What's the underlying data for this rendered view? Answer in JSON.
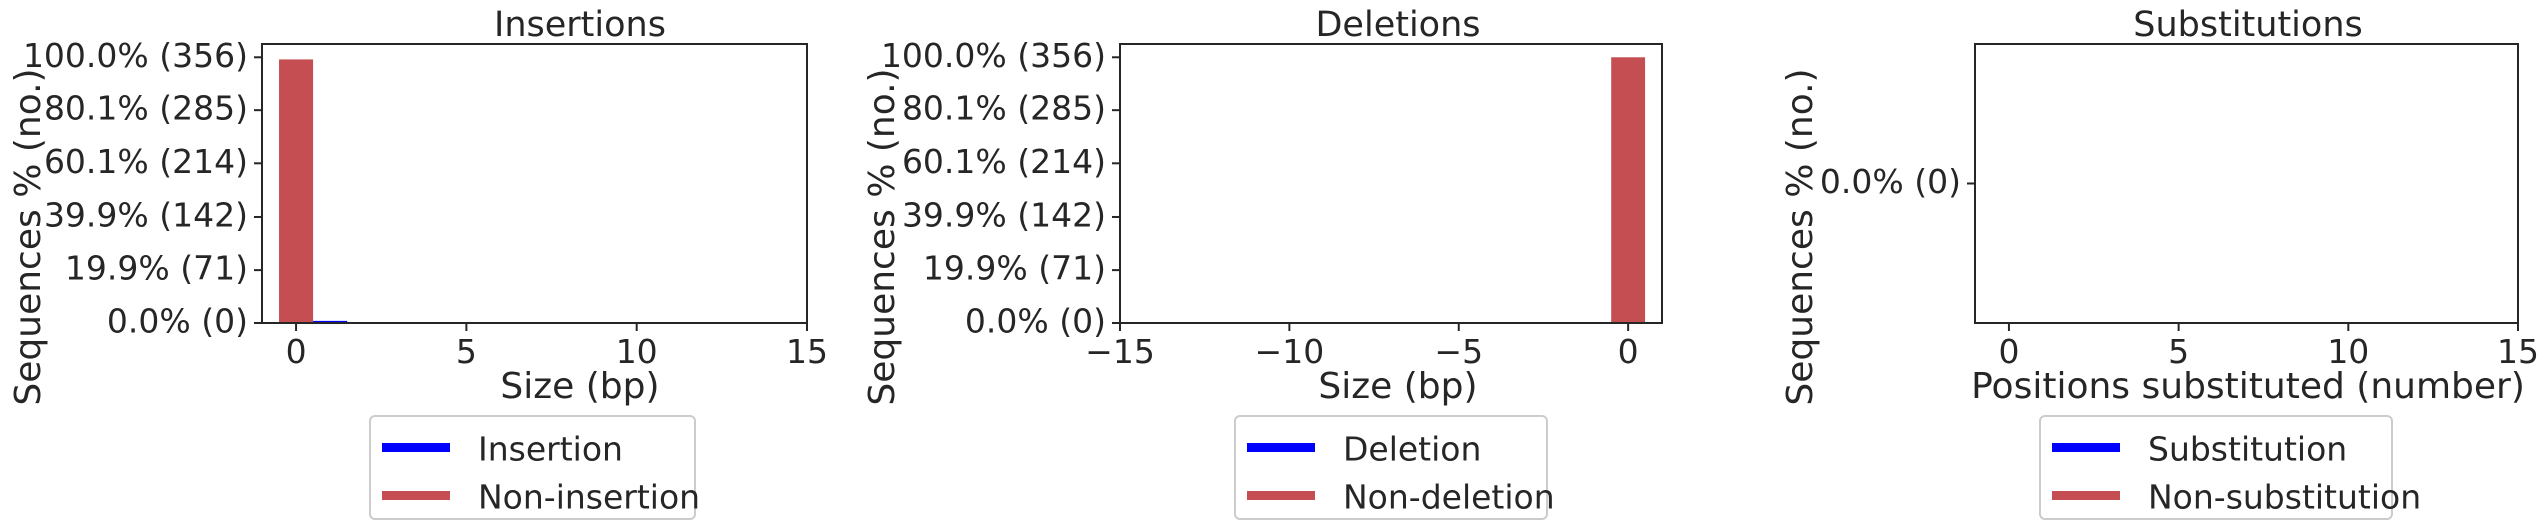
{
  "colors": {
    "indel": "#0000ff",
    "reference": "#c44e52",
    "axis": "#262626",
    "legend_border": "#cccccc"
  },
  "chart_data": [
    {
      "type": "bar",
      "title": "Insertions",
      "xlabel": "Size (bp)",
      "ylabel": "Sequences % (no.)",
      "xlim": [
        -1,
        15
      ],
      "ylim": [
        0,
        105
      ],
      "xticks": [
        "0",
        "5",
        "10",
        "15"
      ],
      "yticks": [
        "0.0% (0)",
        "19.9% (71)",
        "39.9% (142)",
        "60.1% (214)",
        "80.1% (285)",
        "100.0% (356)"
      ],
      "series": [
        {
          "name": "Insertion",
          "color": "#0000ff",
          "points": [
            {
              "x": 1,
              "y": 0.8
            }
          ]
        },
        {
          "name": "Non-insertion",
          "color": "#c44e52",
          "points": [
            {
              "x": 0,
              "y": 99.2
            }
          ]
        }
      ],
      "legend": [
        "Insertion",
        "Non-insertion"
      ],
      "legend_position": "below"
    },
    {
      "type": "bar",
      "title": "Deletions",
      "xlabel": "Size (bp)",
      "ylabel": "Sequences % (no.)",
      "xlim": [
        -15,
        1
      ],
      "ylim": [
        0,
        105
      ],
      "xticks": [
        "−15",
        "−10",
        "−5",
        "0"
      ],
      "yticks": [
        "0.0% (0)",
        "19.9% (71)",
        "39.9% (142)",
        "60.1% (214)",
        "80.1% (285)",
        "100.0% (356)"
      ],
      "series": [
        {
          "name": "Deletion",
          "color": "#0000ff",
          "points": []
        },
        {
          "name": "Non-deletion",
          "color": "#c44e52",
          "points": [
            {
              "x": 0,
              "y": 100.0
            }
          ]
        }
      ],
      "legend": [
        "Deletion",
        "Non-deletion"
      ],
      "legend_position": "below"
    },
    {
      "type": "bar",
      "title": "Substitutions",
      "xlabel": "Positions substituted (number)",
      "ylabel": "Sequences % (no.)",
      "xlim": [
        -1,
        15
      ],
      "ylim": [
        0,
        1
      ],
      "xticks": [
        "0",
        "5",
        "10",
        "15"
      ],
      "yticks": [
        "0.0% (0)"
      ],
      "series": [
        {
          "name": "Substitution",
          "color": "#0000ff",
          "points": []
        },
        {
          "name": "Non-substitution",
          "color": "#c44e52",
          "points": []
        }
      ],
      "legend": [
        "Substitution",
        "Non-substitution"
      ],
      "legend_position": "below"
    }
  ]
}
